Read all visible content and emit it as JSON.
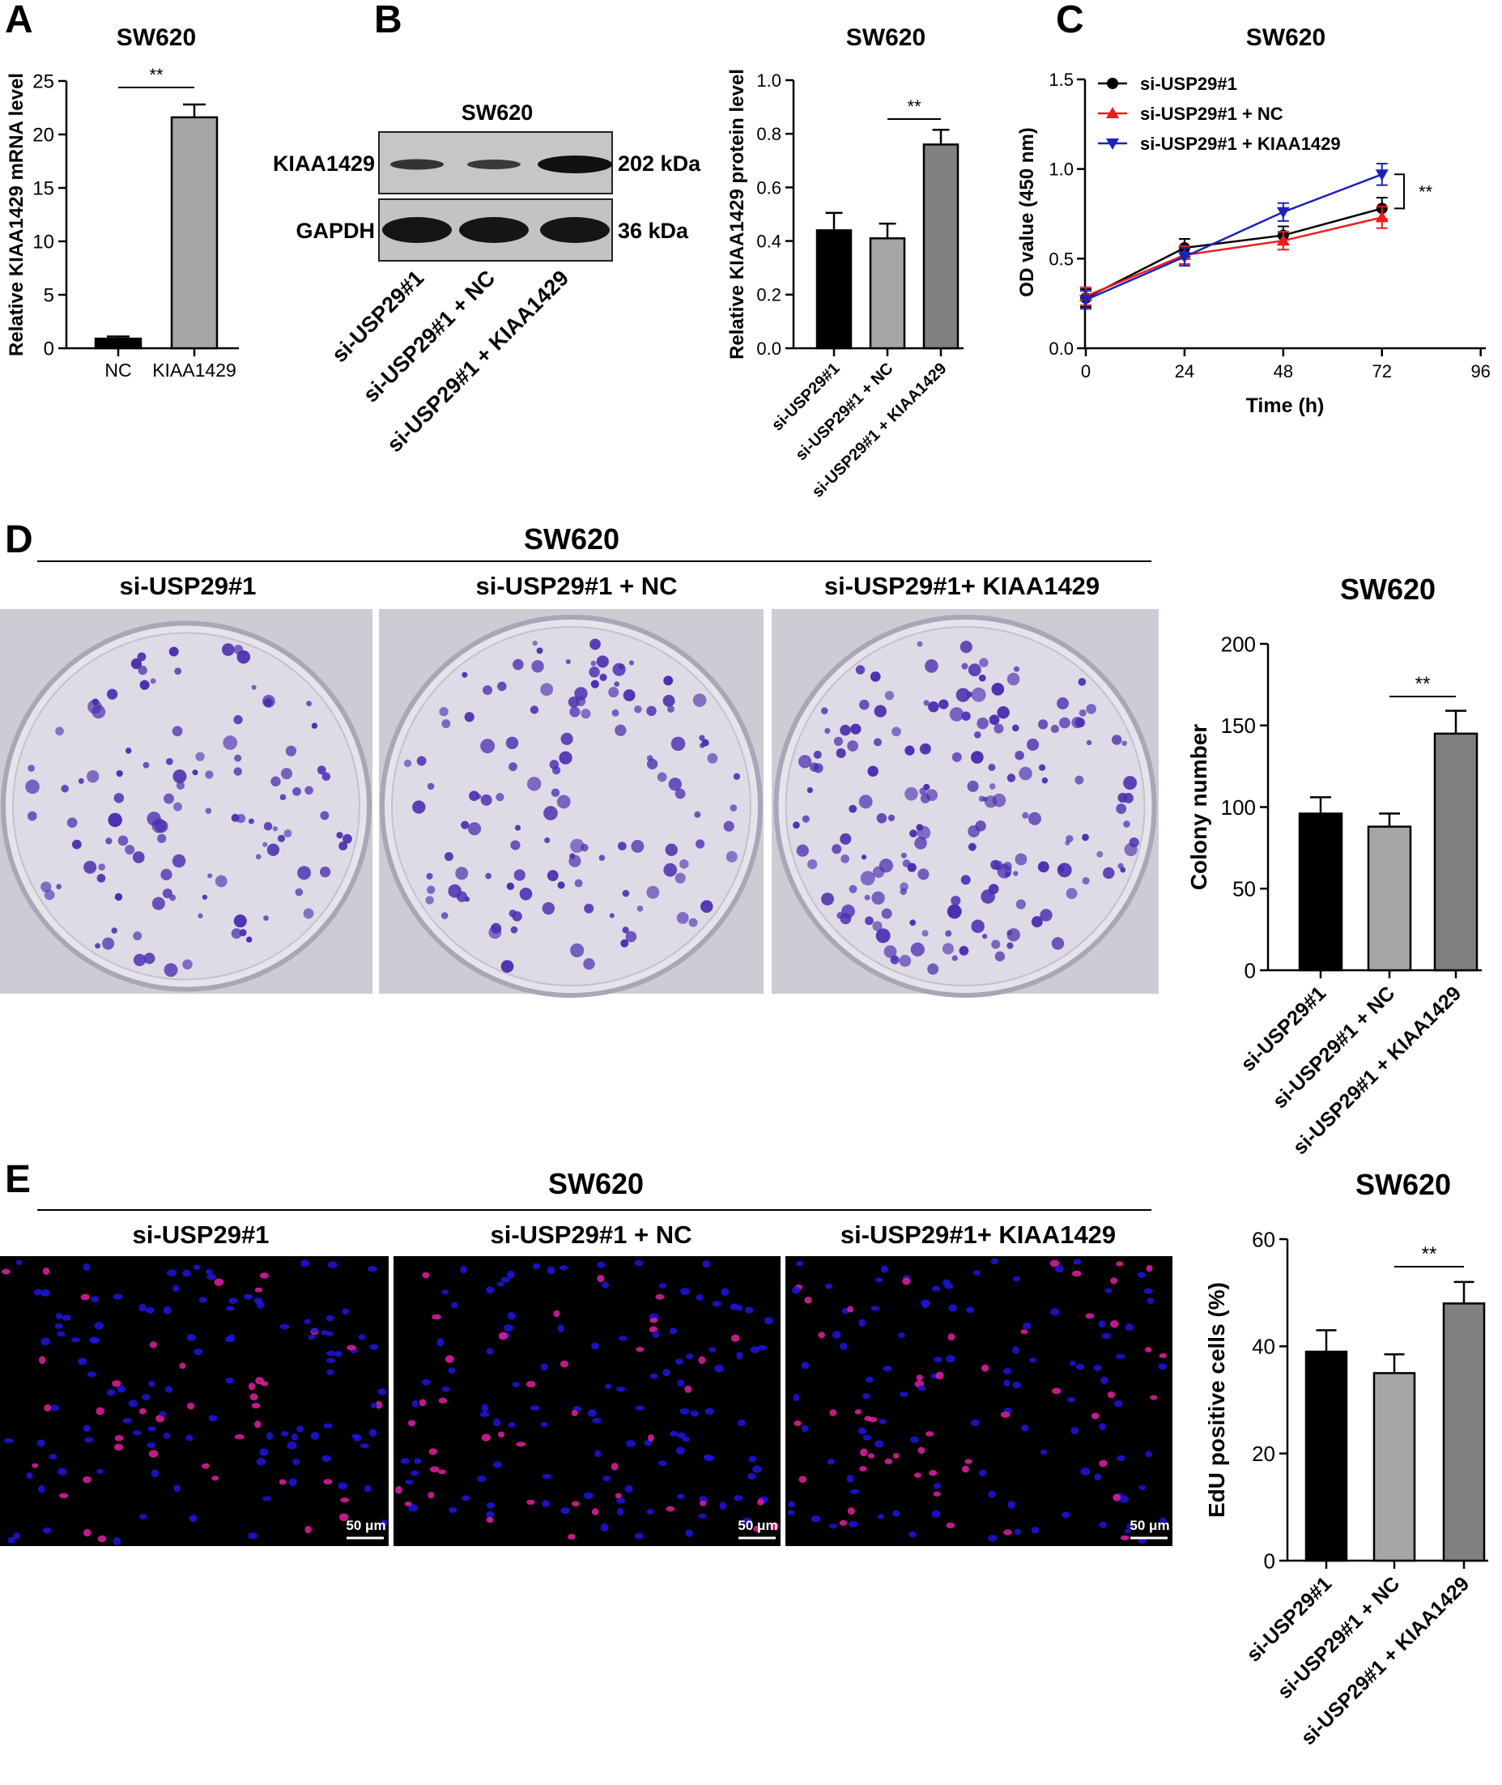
{
  "panels": {
    "A": {
      "letter": "A"
    },
    "B": {
      "letter": "B"
    },
    "C": {
      "letter": "C"
    },
    "D": {
      "letter": "D"
    },
    "E": {
      "letter": "E"
    }
  },
  "colors": {
    "black_bar": "#000000",
    "light_gray_bar": "#a6a6a6",
    "dark_gray_bar": "#808080",
    "line_black": "#000000",
    "line_red": "#ee1c1c",
    "line_blue": "#1a22b8",
    "plate_bg": "#d8d6de",
    "colony": "#4a2fb0",
    "edu_blue": "#1e14e0",
    "edu_pink": "#e020a0"
  },
  "blot": {
    "title": "SW620",
    "rows": [
      {
        "label": "KIAA1429",
        "kda": "202 kDa"
      },
      {
        "label": "GAPDH",
        "kda": "36 kDa"
      }
    ],
    "lanes": [
      "si-USP29#1",
      "si-USP29#1 + NC",
      "si-USP29#1 + KIAA1429"
    ]
  },
  "plates": {
    "group_title": "SW620",
    "labels": [
      "si-USP29#1",
      "si-USP29#1 + NC",
      "si-USP29#1+ KIAA1429"
    ]
  },
  "edu": {
    "group_title": "SW620",
    "labels": [
      "si-USP29#1",
      "si-USP29#1 + NC",
      "si-USP29#1+ KIAA1429"
    ],
    "scale_bar": "50 μm"
  },
  "chart_data": [
    {
      "id": "A",
      "type": "bar",
      "title": "SW620",
      "xlabel": "",
      "ylabel": "Relative KIAA1429 mRNA level",
      "categories": [
        "NC",
        "KIAA1429"
      ],
      "values": [
        0.9,
        21.6
      ],
      "errors": [
        0.2,
        1.2
      ],
      "colors": [
        "#000000",
        "#a6a6a6"
      ],
      "ylim": [
        0,
        25
      ],
      "yticks": [
        0,
        5,
        10,
        15,
        20,
        25
      ],
      "significance": [
        {
          "from": 0,
          "to": 1,
          "label": "**"
        }
      ]
    },
    {
      "id": "B",
      "type": "bar",
      "title": "SW620",
      "xlabel": "",
      "ylabel": "Relative KIAA1429 protein level",
      "categories": [
        "si-USP29#1",
        "si-USP29#1 + NC",
        "si-USP29#1 + KIAA1429"
      ],
      "values": [
        0.44,
        0.41,
        0.76
      ],
      "errors": [
        0.065,
        0.055,
        0.055
      ],
      "colors": [
        "#000000",
        "#a6a6a6",
        "#808080"
      ],
      "ylim": [
        0,
        1.0
      ],
      "yticks": [
        "0.0",
        "0.2",
        "0.4",
        "0.6",
        "0.8",
        "1.0"
      ],
      "significance": [
        {
          "from": 1,
          "to": 2,
          "label": "**"
        }
      ]
    },
    {
      "id": "C",
      "type": "line",
      "title": "SW620",
      "xlabel": "Time (h)",
      "ylabel": "OD value (450 nm)",
      "x": [
        0,
        24,
        48,
        72
      ],
      "xlim": [
        0,
        96
      ],
      "xticks": [
        0,
        24,
        48,
        72,
        96
      ],
      "ylim": [
        0,
        1.5
      ],
      "yticks": [
        "0.0",
        "0.5",
        "1.0",
        "1.5"
      ],
      "legend_position": "top-left",
      "series": [
        {
          "name": "si-USP29#1",
          "values": [
            0.28,
            0.56,
            0.63,
            0.78
          ],
          "errors": [
            0.05,
            0.05,
            0.05,
            0.06
          ],
          "color": "#000000",
          "marker": "circle"
        },
        {
          "name": "si-USP29#1 + NC",
          "values": [
            0.29,
            0.52,
            0.6,
            0.73
          ],
          "errors": [
            0.05,
            0.05,
            0.05,
            0.06
          ],
          "color": "#ee1c1c",
          "marker": "triangle-up"
        },
        {
          "name": "si-USP29#1 + KIAA1429",
          "values": [
            0.27,
            0.51,
            0.76,
            0.97
          ],
          "errors": [
            0.05,
            0.05,
            0.05,
            0.06
          ],
          "color": "#1a22b8",
          "marker": "triangle-down"
        }
      ],
      "significance": [
        {
          "label": "**"
        }
      ]
    },
    {
      "id": "D",
      "type": "bar",
      "title": "SW620",
      "xlabel": "",
      "ylabel": "Colony number",
      "categories": [
        "si-USP29#1",
        "si-USP29#1 + NC",
        "si-USP29#1 + KIAA1429"
      ],
      "values": [
        96,
        88,
        145
      ],
      "errors": [
        10,
        8,
        14
      ],
      "colors": [
        "#000000",
        "#a6a6a6",
        "#808080"
      ],
      "ylim": [
        0,
        200
      ],
      "yticks": [
        0,
        50,
        100,
        150,
        200
      ],
      "significance": [
        {
          "from": 1,
          "to": 2,
          "label": "**"
        }
      ]
    },
    {
      "id": "E",
      "type": "bar",
      "title": "SW620",
      "xlabel": "",
      "ylabel": "EdU positive cells (%)",
      "categories": [
        "si-USP29#1",
        "si-USP29#1 + NC",
        "si-USP29#1 + KIAA1429"
      ],
      "values": [
        39,
        35,
        48
      ],
      "errors": [
        4,
        3.5,
        4
      ],
      "colors": [
        "#000000",
        "#a6a6a6",
        "#808080"
      ],
      "ylim": [
        0,
        60
      ],
      "yticks": [
        0,
        20,
        40,
        60
      ],
      "significance": [
        {
          "from": 1,
          "to": 2,
          "label": "**"
        }
      ]
    }
  ]
}
